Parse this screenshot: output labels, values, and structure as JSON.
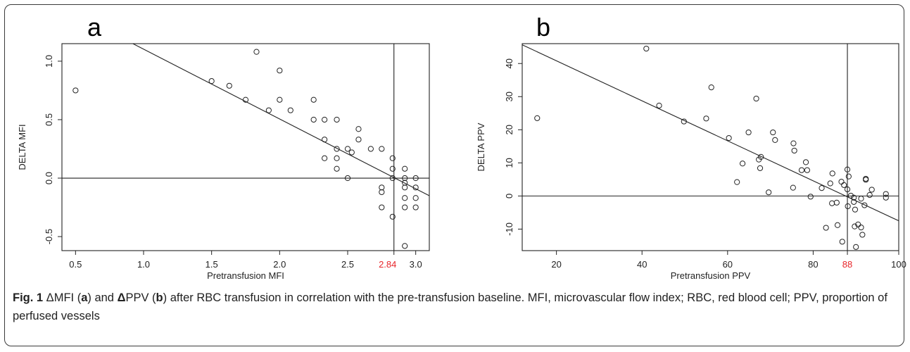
{
  "caption": {
    "fig_label": "Fig. 1",
    "text_1": " ΔMFI (",
    "a": "a",
    "text_2": ") and ",
    "delta_ppv": "Δ",
    "text_3": "PPV (",
    "b": "b",
    "text_4": ") after RBC transfusion in correlation with the pre-transfusion baseline. MFI, microvascular flow index; RBC, red blood cell; PPV, proportion of perfused vessels"
  },
  "chart_data": [
    {
      "panel": "a",
      "type": "scatter",
      "xlabel": "Pretransfusion MFI",
      "ylabel": "DELTA MFI",
      "xlim": [
        0.4,
        3.1
      ],
      "ylim": [
        -0.62,
        1.15
      ],
      "x_ticks": [
        0.5,
        1.0,
        1.5,
        2.0,
        2.5,
        3.0
      ],
      "x_tick_labels": [
        "0.5",
        "1.0",
        "1.5",
        "2.0",
        "2.5",
        "3.0"
      ],
      "y_ticks": [
        -0.5,
        0.0,
        0.5,
        1.0
      ],
      "y_tick_labels": [
        "-0.5",
        "0.0",
        "0.5",
        "1.0"
      ],
      "cutoff": {
        "value": 2.84,
        "label": "2.84",
        "color": "#e8262b"
      },
      "hline": 0,
      "regression": {
        "slope": -0.597,
        "intercept": 1.7
      },
      "points": [
        [
          0.5,
          0.75
        ],
        [
          1.5,
          0.83
        ],
        [
          1.63,
          0.79
        ],
        [
          1.75,
          0.67
        ],
        [
          1.83,
          1.08
        ],
        [
          1.92,
          0.58
        ],
        [
          2.0,
          0.67
        ],
        [
          2.0,
          0.92
        ],
        [
          2.08,
          0.58
        ],
        [
          2.25,
          0.67
        ],
        [
          2.25,
          0.5
        ],
        [
          2.33,
          0.5
        ],
        [
          2.33,
          0.33
        ],
        [
          2.33,
          0.17
        ],
        [
          2.42,
          0.5
        ],
        [
          2.42,
          0.25
        ],
        [
          2.42,
          0.17
        ],
        [
          2.42,
          0.08
        ],
        [
          2.5,
          0.25
        ],
        [
          2.5,
          0.0
        ],
        [
          2.53,
          0.22
        ],
        [
          2.58,
          0.42
        ],
        [
          2.58,
          0.33
        ],
        [
          2.67,
          0.25
        ],
        [
          2.75,
          0.25
        ],
        [
          2.75,
          -0.08
        ],
        [
          2.75,
          -0.12
        ],
        [
          2.75,
          -0.25
        ],
        [
          2.83,
          0.17
        ],
        [
          2.83,
          0.08
        ],
        [
          2.83,
          0.0
        ],
        [
          2.83,
          -0.33
        ],
        [
          2.92,
          0.08
        ],
        [
          2.92,
          0.0
        ],
        [
          2.92,
          -0.04
        ],
        [
          2.92,
          -0.08
        ],
        [
          2.92,
          -0.17
        ],
        [
          2.92,
          -0.25
        ],
        [
          2.92,
          -0.58
        ],
        [
          3.0,
          0.0
        ],
        [
          3.0,
          -0.08
        ],
        [
          3.0,
          -0.17
        ],
        [
          3.0,
          -0.25
        ]
      ]
    },
    {
      "panel": "b",
      "type": "scatter",
      "xlabel": "Pretransfusion PPV",
      "ylabel": "DELTA PPV",
      "xlim": [
        12,
        100
      ],
      "ylim": [
        -16.5,
        46
      ],
      "x_ticks": [
        20,
        40,
        60,
        80,
        100
      ],
      "x_tick_labels": [
        "20",
        "40",
        "60",
        "80",
        "100"
      ],
      "y_ticks": [
        -10,
        0,
        10,
        20,
        30,
        40
      ],
      "y_tick_labels": [
        "-10",
        "0",
        "10",
        "20",
        "30",
        "40"
      ],
      "cutoff": {
        "value": 88,
        "label": "88",
        "color": "#e8262b"
      },
      "hline": 0,
      "regression": {
        "slope": -0.604,
        "intercept": 52.9
      },
      "points": [
        [
          15.5,
          23.5
        ],
        [
          41,
          44.5
        ],
        [
          44,
          27.3
        ],
        [
          49.8,
          22.5
        ],
        [
          55,
          23.4
        ],
        [
          56.2,
          32.8
        ],
        [
          60.3,
          17.5
        ],
        [
          62.2,
          4.2
        ],
        [
          63.5,
          9.8
        ],
        [
          64.9,
          19.2
        ],
        [
          66.7,
          29.4
        ],
        [
          67.3,
          11
        ],
        [
          67.8,
          11.8
        ],
        [
          67.6,
          8.4
        ],
        [
          69.6,
          1.1
        ],
        [
          70.6,
          19.2
        ],
        [
          71.1,
          16.9
        ],
        [
          75.4,
          15.9
        ],
        [
          75.6,
          13.7
        ],
        [
          75.3,
          2.5
        ],
        [
          77.3,
          7.8
        ],
        [
          78.3,
          10.2
        ],
        [
          78.6,
          7.8
        ],
        [
          79.4,
          -0.2
        ],
        [
          82,
          2.4
        ],
        [
          83,
          -9.6
        ],
        [
          84,
          3.8
        ],
        [
          84.5,
          6.8
        ],
        [
          84.4,
          -2.2
        ],
        [
          85.5,
          -2
        ],
        [
          85.7,
          -8.8
        ],
        [
          86.6,
          4.3
        ],
        [
          87.2,
          3.3
        ],
        [
          86.8,
          -13.8
        ],
        [
          88,
          8
        ],
        [
          88.3,
          5.9
        ],
        [
          88,
          2
        ],
        [
          88.1,
          -3.1
        ],
        [
          88.8,
          0.1
        ],
        [
          89.5,
          -0.5
        ],
        [
          89.5,
          -1.8
        ],
        [
          89.8,
          -4.1
        ],
        [
          89.7,
          -9.2
        ],
        [
          90,
          -15.4
        ],
        [
          90.5,
          -8.6
        ],
        [
          91.2,
          -0.8
        ],
        [
          91.2,
          -9.5
        ],
        [
          91.5,
          -11.7
        ],
        [
          92,
          -2.8
        ],
        [
          92.3,
          4.9
        ],
        [
          92.3,
          5.2
        ],
        [
          93.2,
          0.3
        ],
        [
          93.7,
          1.9
        ],
        [
          97,
          0.6
        ],
        [
          97,
          -0.5
        ]
      ]
    }
  ]
}
